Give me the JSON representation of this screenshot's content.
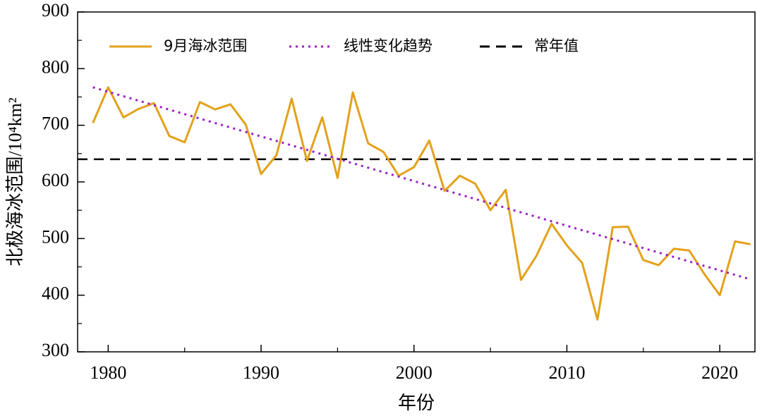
{
  "chart_data": {
    "type": "line",
    "xlabel": "年份",
    "ylabel": "北极海冰范围/10⁴km²",
    "x": [
      1979,
      1980,
      1981,
      1982,
      1983,
      1984,
      1985,
      1986,
      1987,
      1988,
      1989,
      1990,
      1991,
      1992,
      1993,
      1994,
      1995,
      1996,
      1997,
      1998,
      1999,
      2000,
      2001,
      2002,
      2003,
      2004,
      2005,
      2006,
      2007,
      2008,
      2009,
      2010,
      2011,
      2012,
      2013,
      2014,
      2015,
      2016,
      2017,
      2018,
      2019,
      2020,
      2021,
      2022
    ],
    "series": [
      {
        "name": "9月海冰范围",
        "color": "#e3a11b",
        "style": "solid",
        "values": [
          704,
          767,
          714,
          729,
          739,
          681,
          670,
          741,
          728,
          737,
          701,
          614,
          647,
          747,
          637,
          714,
          607,
          758,
          668,
          653,
          611,
          626,
          673,
          584,
          611,
          597,
          550,
          586,
          427,
          469,
          526,
          488,
          457,
          357,
          520,
          521,
          462,
          453,
          482,
          479,
          437,
          400,
          495,
          490
        ]
      },
      {
        "name": "线性变化趋势",
        "color": "#9b1fc8",
        "style": "dotted",
        "x": [
          1979,
          2022
        ],
        "values": [
          767,
          428
        ]
      }
    ],
    "hlines": [
      {
        "name": "常年值",
        "value": 640,
        "color": "#000000",
        "style": "dashed"
      }
    ],
    "xlim": [
      1978,
      2022.3
    ],
    "ylim": [
      300,
      900
    ],
    "xticks": [
      1980,
      1990,
      2000,
      2010,
      2020
    ],
    "xticks_minor": [
      1985,
      1995,
      2005,
      2015
    ],
    "yticks": [
      300,
      400,
      500,
      600,
      700,
      800,
      900
    ],
    "yticks_minor": [
      350,
      450,
      550,
      650,
      750,
      850
    ],
    "legend": "top"
  }
}
